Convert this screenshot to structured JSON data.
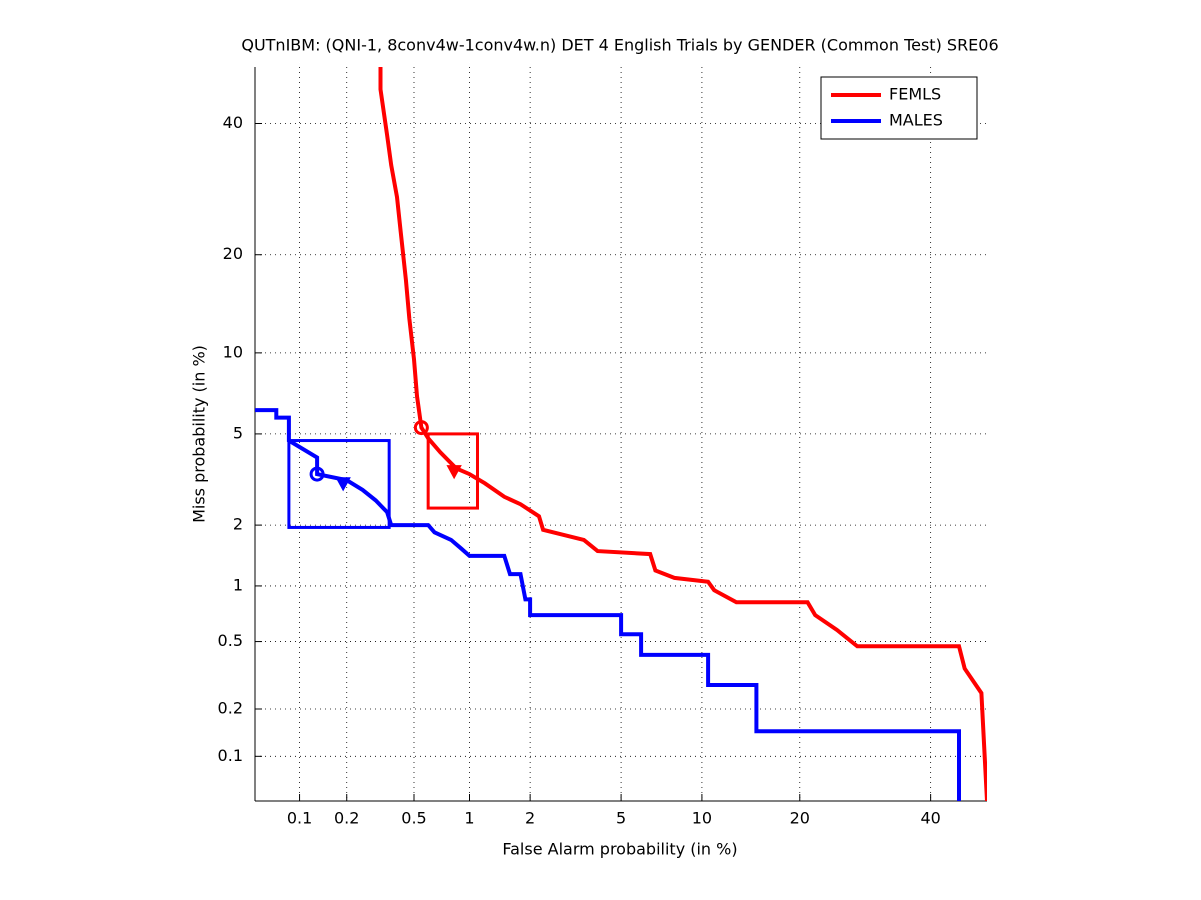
{
  "chart_data": {
    "type": "line",
    "title": "QUTnIBM: (QNI-1, 8conv4w-1conv4w.n) DET 4 English Trials by GENDER (Common Test) SRE06",
    "x_label": "False Alarm probability (in %)",
    "y_label": "Miss probability (in %)",
    "scale": "probit",
    "grid": true,
    "legend": "upper right",
    "xlim": [
      0.05,
      50
    ],
    "ylim": [
      0.05,
      50
    ],
    "xticks": [
      0.1,
      0.2,
      0.5,
      1,
      2,
      5,
      10,
      20,
      40
    ],
    "yticks": [
      0.1,
      0.2,
      0.5,
      1,
      2,
      5,
      10,
      20,
      40
    ],
    "series": [
      {
        "name": "FEMLS",
        "color": "#ff0000",
        "x": [
          0.32,
          0.32,
          0.35,
          0.37,
          0.4,
          0.42,
          0.45,
          0.47,
          0.5,
          0.52,
          0.55,
          0.6,
          0.7,
          0.85,
          1.0,
          1.2,
          1.5,
          1.8,
          2.2,
          2.3,
          3.5,
          4,
          6.5,
          6.8,
          8,
          10.5,
          11,
          13,
          21,
          22,
          25,
          28,
          45,
          46,
          49,
          50
        ],
        "values": [
          50,
          46,
          38,
          33,
          28,
          23,
          17,
          13,
          9.5,
          7,
          5.3,
          4.8,
          4.2,
          3.6,
          3.4,
          3.1,
          2.7,
          2.5,
          2.2,
          1.9,
          1.7,
          1.5,
          1.45,
          1.2,
          1.1,
          1.05,
          0.95,
          0.82,
          0.82,
          0.7,
          0.58,
          0.47,
          0.47,
          0.35,
          0.25,
          0.05
        ],
        "circle": [
          0.55,
          5.3
        ],
        "triangle": [
          0.83,
          3.5
        ],
        "box": [
          0.6,
          1.1,
          2.4,
          5.0
        ]
      },
      {
        "name": "MALES",
        "color": "#0000ff",
        "x": [
          0.05,
          0.07,
          0.07,
          0.085,
          0.085,
          0.13,
          0.13,
          0.2,
          0.25,
          0.3,
          0.35,
          0.37,
          0.6,
          0.65,
          0.8,
          0.9,
          1.0,
          1.5,
          1.6,
          1.8,
          1.9,
          2.0,
          2.0,
          5,
          5,
          6,
          6,
          10.5,
          10.5,
          15,
          15,
          45,
          45
        ],
        "values": [
          6.2,
          6.2,
          5.8,
          5.8,
          4.7,
          4.0,
          3.4,
          3.2,
          2.9,
          2.6,
          2.3,
          2.0,
          2.0,
          1.85,
          1.7,
          1.55,
          1.42,
          1.42,
          1.15,
          1.15,
          0.85,
          0.85,
          0.7,
          0.7,
          0.55,
          0.55,
          0.42,
          0.42,
          0.28,
          0.28,
          0.145,
          0.145,
          0.05
        ],
        "circle": [
          0.13,
          3.4
        ],
        "triangle": [
          0.19,
          3.1
        ],
        "box": [
          0.085,
          0.36,
          1.95,
          4.7
        ]
      }
    ]
  }
}
